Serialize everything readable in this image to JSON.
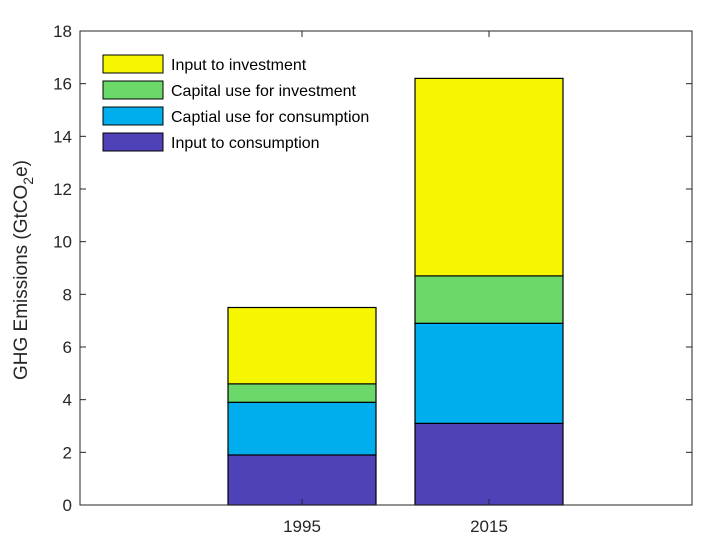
{
  "chart_data": {
    "type": "bar",
    "stacked": true,
    "categories": [
      "1995",
      "2015"
    ],
    "series": [
      {
        "name": "Input to consumption",
        "color": "#4f42b9",
        "values": [
          1.9,
          3.1
        ]
      },
      {
        "name": "Captial use for consumption",
        "color": "#00aeee",
        "values": [
          2.0,
          3.8
        ]
      },
      {
        "name": "Capital use for investment",
        "color": "#6ad96a",
        "values": [
          0.7,
          1.8
        ]
      },
      {
        "name": "Input to investment",
        "color": "#f6f600",
        "values": [
          2.9,
          7.5
        ]
      }
    ],
    "ylabel_main": "GHG Emissions (GtCO",
    "ylabel_sub": "2",
    "ylabel_end": "e)",
    "ylim": [
      0,
      18
    ],
    "yticks": [
      "0",
      "2",
      "4",
      "6",
      "8",
      "10",
      "12",
      "14",
      "16",
      "18"
    ],
    "legend_order": [
      "Input to investment",
      "Capital use for investment",
      "Captial use for consumption",
      "Input to consumption"
    ],
    "legend_position": "top-left",
    "grid": false
  }
}
